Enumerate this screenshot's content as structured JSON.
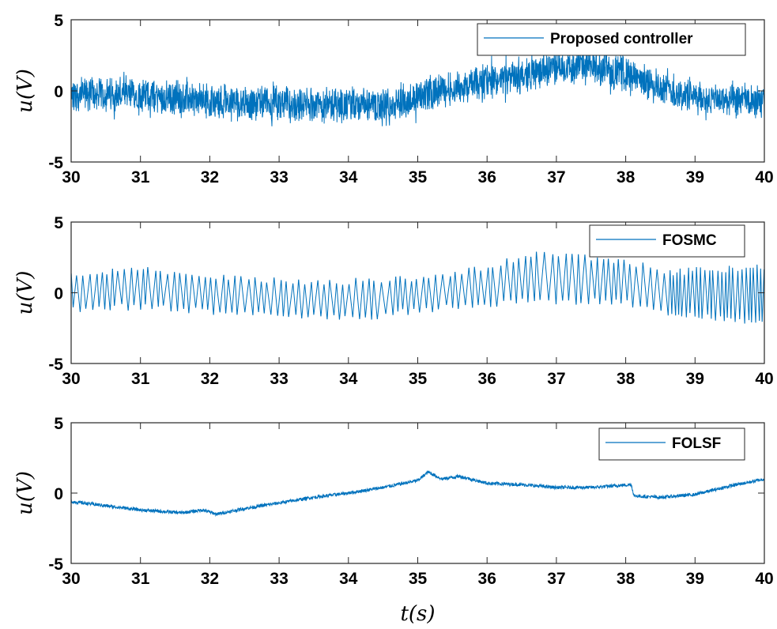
{
  "chart_data": [
    {
      "type": "line",
      "ylabel": "u(V)",
      "xlabel": "",
      "xlim": [
        30,
        40
      ],
      "ylim": [
        -5,
        5
      ],
      "xticks": [
        "30",
        "31",
        "32",
        "33",
        "34",
        "35",
        "36",
        "37",
        "38",
        "39",
        "40"
      ],
      "yticks": [
        "-5",
        "0",
        "5"
      ],
      "grid": false,
      "legend_position": "top-right",
      "line_color": "#0072BD",
      "series": [
        {
          "name": "Proposed controller",
          "noise_amplitude": 1.3,
          "baseline": [
            [
              30,
              -0.2
            ],
            [
              31,
              -0.3
            ],
            [
              32,
              -0.7
            ],
            [
              33,
              -0.9
            ],
            [
              34,
              -1.0
            ],
            [
              34.7,
              -1.1
            ],
            [
              35,
              -0.4
            ],
            [
              35.5,
              0.2
            ],
            [
              36,
              0.6
            ],
            [
              36.5,
              1.0
            ],
            [
              37,
              1.7
            ],
            [
              37.5,
              1.7
            ],
            [
              38,
              1.2
            ],
            [
              38.5,
              0.2
            ],
            [
              39,
              -0.5
            ],
            [
              39.5,
              -0.7
            ],
            [
              40,
              -0.8
            ]
          ]
        }
      ]
    },
    {
      "type": "line",
      "ylabel": "u(V)",
      "xlabel": "",
      "xlim": [
        30,
        40
      ],
      "ylim": [
        -5,
        5
      ],
      "xticks": [
        "30",
        "31",
        "32",
        "33",
        "34",
        "35",
        "36",
        "37",
        "38",
        "39",
        "40"
      ],
      "yticks": [
        "-5",
        "0",
        "5"
      ],
      "grid": false,
      "legend_position": "top-right",
      "line_color": "#0072BD",
      "series": [
        {
          "name": "FOSMC",
          "switching": true,
          "upper_envelope": [
            [
              30,
              1.4
            ],
            [
              31,
              1.9
            ],
            [
              32,
              1.5
            ],
            [
              33,
              1.1
            ],
            [
              34,
              1.0
            ],
            [
              35,
              1.3
            ],
            [
              36,
              2.0
            ],
            [
              36.6,
              3.0
            ],
            [
              37,
              2.8
            ],
            [
              38,
              2.5
            ],
            [
              38.6,
              1.6
            ],
            [
              39,
              1.8
            ],
            [
              40,
              2.0
            ]
          ],
          "lower_envelope": [
            [
              30,
              -1.4
            ],
            [
              31,
              -1.2
            ],
            [
              31.6,
              -1.4
            ],
            [
              32,
              -1.6
            ],
            [
              33,
              -1.9
            ],
            [
              34,
              -2.1
            ],
            [
              35,
              -1.5
            ],
            [
              36,
              -1.0
            ],
            [
              37,
              -0.8
            ],
            [
              38,
              -0.9
            ],
            [
              38.6,
              -1.6
            ],
            [
              39,
              -1.9
            ],
            [
              40,
              -2.4
            ]
          ]
        }
      ]
    },
    {
      "type": "line",
      "ylabel": "u(V)",
      "xlabel": "t(s)",
      "xlim": [
        30,
        40
      ],
      "ylim": [
        -5,
        5
      ],
      "xticks": [
        "30",
        "31",
        "32",
        "33",
        "34",
        "35",
        "36",
        "37",
        "38",
        "39",
        "40"
      ],
      "yticks": [
        "-5",
        "0",
        "5"
      ],
      "grid": false,
      "legend_position": "top-right",
      "line_color": "#0072BD",
      "series": [
        {
          "name": "FOLSF",
          "noise_amplitude": 0.12,
          "baseline": [
            [
              30,
              -0.6
            ],
            [
              30.5,
              -0.9
            ],
            [
              31,
              -1.2
            ],
            [
              31.6,
              -1.4
            ],
            [
              31.9,
              -1.2
            ],
            [
              32.1,
              -1.5
            ],
            [
              32.5,
              -1.1
            ],
            [
              33,
              -0.7
            ],
            [
              33.5,
              -0.3
            ],
            [
              34,
              0.0
            ],
            [
              34.5,
              0.4
            ],
            [
              35,
              0.9
            ],
            [
              35.15,
              1.5
            ],
            [
              35.35,
              1.0
            ],
            [
              35.6,
              1.2
            ],
            [
              36,
              0.7
            ],
            [
              36.5,
              0.6
            ],
            [
              37,
              0.4
            ],
            [
              37.5,
              0.4
            ],
            [
              38.08,
              0.6
            ],
            [
              38.12,
              -0.2
            ],
            [
              38.5,
              -0.3
            ],
            [
              39,
              -0.1
            ],
            [
              39.5,
              0.5
            ],
            [
              40,
              1.0
            ]
          ]
        }
      ]
    }
  ]
}
